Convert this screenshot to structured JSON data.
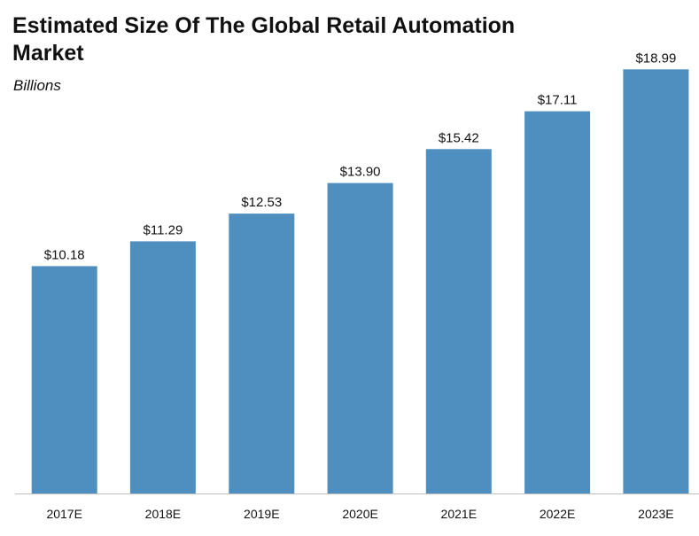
{
  "chart_data": {
    "type": "bar",
    "title": "Estimated Size Of The Global Retail Automation Market",
    "subtitle": "Billions",
    "xlabel": "",
    "ylabel": "",
    "categories": [
      "2017E",
      "2018E",
      "2019E",
      "2020E",
      "2021E",
      "2022E",
      "2023E"
    ],
    "values": [
      10.18,
      11.29,
      12.53,
      13.9,
      15.42,
      17.11,
      18.99
    ],
    "data_labels": [
      "$10.18",
      "$11.29",
      "$12.53",
      "$13.90",
      "$15.42",
      "$17.11",
      "$18.99"
    ],
    "ylim": [
      0,
      19
    ],
    "grid": false,
    "legend": "none",
    "bar_color": "#4f8fc0"
  }
}
